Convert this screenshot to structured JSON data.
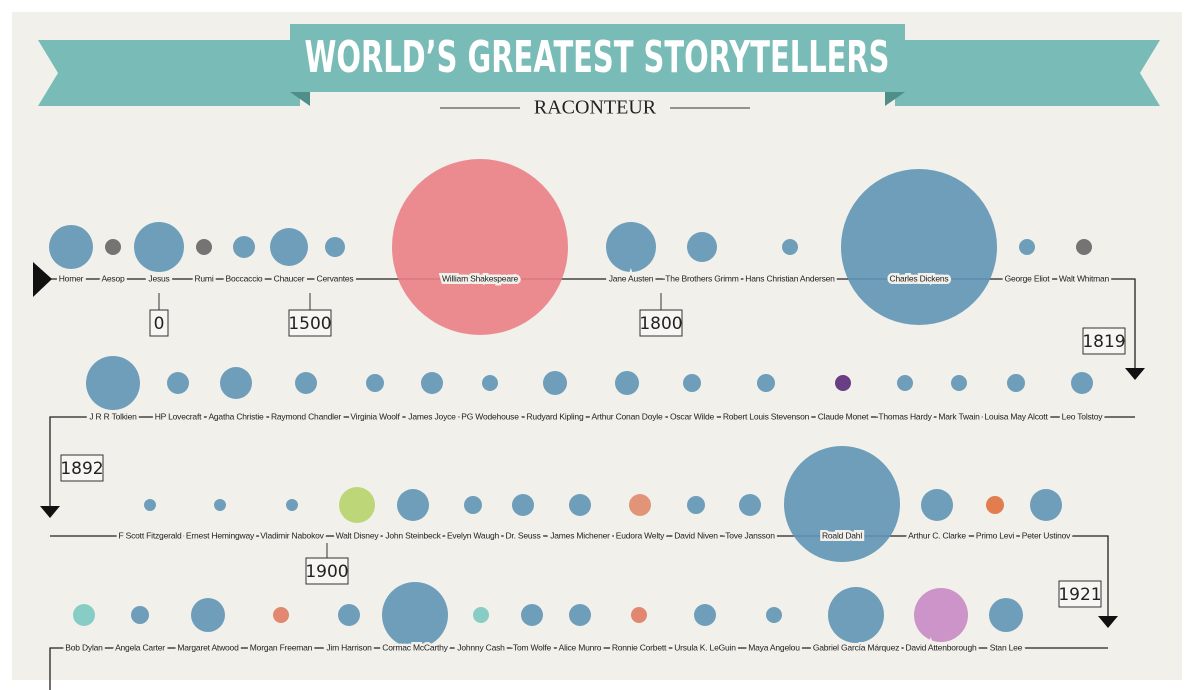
{
  "header": {
    "title": "WORLD’S GREATEST STORYTELLERS",
    "brand": "RACONTEUR"
  },
  "rows": [
    {
      "names": [
        "Homer",
        "Aesop",
        "Jesus",
        "Rumi",
        "Boccaccio",
        "Chaucer",
        "Cervantes",
        "William Shakespeare",
        "Jane Austen",
        "The Brothers Grimm",
        "Hans Christian Andersen",
        "Charles Dickens",
        "George Eliot",
        "Walt Whitman"
      ]
    },
    {
      "names": [
        "J R R Tolkien",
        "HP Lovecraft",
        "Agatha Christie",
        "Raymond Chandler",
        "Virginia Woolf",
        "James Joyce",
        "PG Wodehouse",
        "Rudyard Kipling",
        "Arthur Conan Doyle",
        "Oscar Wilde",
        "Robert Louis Stevenson",
        "Claude Monet",
        "Thomas Hardy",
        "Mark Twain",
        "Louisa May Alcott",
        "Leo Tolstoy"
      ]
    },
    {
      "names": [
        "F Scott Fitzgerald",
        "Ernest Hemingway",
        "Vladimir Nabokov",
        "Walt Disney",
        "John Steinbeck",
        "Evelyn Waugh",
        "Dr. Seuss",
        "James Michener",
        "Eudora Welty",
        "David Niven",
        "Tove Jansson",
        "Roald Dahl",
        "Arthur C. Clarke",
        "Primo Levi",
        "Peter Ustinov"
      ]
    },
    {
      "names": [
        "Bob Dylan",
        "Angela Carter",
        "Margaret Atwood",
        "Morgan Freeman",
        "Jim Harrison",
        "Cormac McCarthy",
        "Johnny Cash",
        "Tom Wolfe",
        "Alice Munro",
        "Ronnie Corbett",
        "Ursula K. LeGuin",
        "Maya Angelou",
        "Gabriel García Márquez",
        "David Attenborough",
        "Stan Lee"
      ]
    }
  ],
  "markers": [
    "0",
    "1500",
    "1800",
    "1819",
    "1892",
    "1900",
    "1921"
  ]
}
